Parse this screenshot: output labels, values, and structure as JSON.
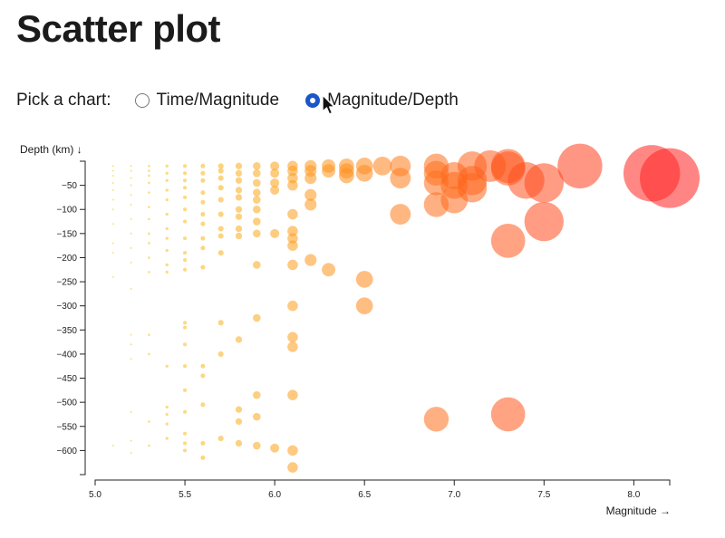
{
  "page": {
    "title": "Scatter plot"
  },
  "picker": {
    "label": "Pick a chart:",
    "options": [
      {
        "label": "Time/Magnitude",
        "checked": false
      },
      {
        "label": "Magnitude/Depth",
        "checked": true
      }
    ]
  },
  "colors": {
    "low": "#f6d416",
    "mid": "#ff8c1a",
    "high": "#ff2020",
    "radio_accent": "#1a55c9"
  },
  "chart_data": {
    "type": "scatter",
    "title": "",
    "xlabel": "Magnitude →",
    "ylabel": "Depth (km) ↓",
    "xlim": [
      5.0,
      8.2
    ],
    "ylim": [
      -650,
      0
    ],
    "xticks": [
      "5.0",
      "5.5",
      "6.0",
      "6.5",
      "7.0",
      "7.5",
      "8.0"
    ],
    "yticks": [
      "−50",
      "−100",
      "−150",
      "−200",
      "−250",
      "−300",
      "−350",
      "−400",
      "−450",
      "−500",
      "−550",
      "−600"
    ],
    "points": [
      [
        5.1,
        -10
      ],
      [
        5.1,
        -20
      ],
      [
        5.1,
        -30
      ],
      [
        5.1,
        -45
      ],
      [
        5.1,
        -60
      ],
      [
        5.1,
        -80
      ],
      [
        5.1,
        -100
      ],
      [
        5.1,
        -130
      ],
      [
        5.1,
        -170
      ],
      [
        5.1,
        -190
      ],
      [
        5.1,
        -240
      ],
      [
        5.1,
        -590
      ],
      [
        5.2,
        -10
      ],
      [
        5.2,
        -20
      ],
      [
        5.2,
        -35
      ],
      [
        5.2,
        -50
      ],
      [
        5.2,
        -70
      ],
      [
        5.2,
        -90
      ],
      [
        5.2,
        -120
      ],
      [
        5.2,
        -150
      ],
      [
        5.2,
        -180
      ],
      [
        5.2,
        -210
      ],
      [
        5.2,
        -265
      ],
      [
        5.2,
        -360
      ],
      [
        5.2,
        -380
      ],
      [
        5.2,
        -410
      ],
      [
        5.2,
        -520
      ],
      [
        5.2,
        -580
      ],
      [
        5.2,
        -605
      ],
      [
        5.3,
        -10
      ],
      [
        5.3,
        -20
      ],
      [
        5.3,
        -30
      ],
      [
        5.3,
        -45
      ],
      [
        5.3,
        -65
      ],
      [
        5.3,
        -95
      ],
      [
        5.3,
        -120
      ],
      [
        5.3,
        -150
      ],
      [
        5.3,
        -170
      ],
      [
        5.3,
        -200
      ],
      [
        5.3,
        -230
      ],
      [
        5.3,
        -360
      ],
      [
        5.3,
        -400
      ],
      [
        5.3,
        -540
      ],
      [
        5.3,
        -590
      ],
      [
        5.4,
        -10
      ],
      [
        5.4,
        -25
      ],
      [
        5.4,
        -40
      ],
      [
        5.4,
        -60
      ],
      [
        5.4,
        -80
      ],
      [
        5.4,
        -110
      ],
      [
        5.4,
        -140
      ],
      [
        5.4,
        -160
      ],
      [
        5.4,
        -185
      ],
      [
        5.4,
        -215
      ],
      [
        5.4,
        -230
      ],
      [
        5.4,
        -425
      ],
      [
        5.4,
        -510
      ],
      [
        5.4,
        -525
      ],
      [
        5.4,
        -545
      ],
      [
        5.4,
        -575
      ],
      [
        5.5,
        -10
      ],
      [
        5.5,
        -25
      ],
      [
        5.5,
        -40
      ],
      [
        5.5,
        -55
      ],
      [
        5.5,
        -75
      ],
      [
        5.5,
        -100
      ],
      [
        5.5,
        -125
      ],
      [
        5.5,
        -160
      ],
      [
        5.5,
        -190
      ],
      [
        5.5,
        -205
      ],
      [
        5.5,
        -225
      ],
      [
        5.5,
        -335
      ],
      [
        5.5,
        -345
      ],
      [
        5.5,
        -380
      ],
      [
        5.5,
        -425
      ],
      [
        5.5,
        -475
      ],
      [
        5.5,
        -520
      ],
      [
        5.5,
        -565
      ],
      [
        5.5,
        -585
      ],
      [
        5.5,
        -600
      ],
      [
        5.6,
        -10
      ],
      [
        5.6,
        -25
      ],
      [
        5.6,
        -40
      ],
      [
        5.6,
        -65
      ],
      [
        5.6,
        -85
      ],
      [
        5.6,
        -110
      ],
      [
        5.6,
        -130
      ],
      [
        5.6,
        -160
      ],
      [
        5.6,
        -180
      ],
      [
        5.6,
        -220
      ],
      [
        5.6,
        -425
      ],
      [
        5.6,
        -445
      ],
      [
        5.6,
        -505
      ],
      [
        5.6,
        -585
      ],
      [
        5.6,
        -615
      ],
      [
        5.7,
        -10
      ],
      [
        5.7,
        -20
      ],
      [
        5.7,
        -35
      ],
      [
        5.7,
        -55
      ],
      [
        5.7,
        -80
      ],
      [
        5.7,
        -110
      ],
      [
        5.7,
        -140
      ],
      [
        5.7,
        -155
      ],
      [
        5.7,
        -190
      ],
      [
        5.7,
        -335
      ],
      [
        5.7,
        -400
      ],
      [
        5.7,
        -575
      ],
      [
        5.8,
        -10
      ],
      [
        5.8,
        -25
      ],
      [
        5.8,
        -40
      ],
      [
        5.8,
        -60
      ],
      [
        5.8,
        -75
      ],
      [
        5.8,
        -100
      ],
      [
        5.8,
        -115
      ],
      [
        5.8,
        -140
      ],
      [
        5.8,
        -155
      ],
      [
        5.8,
        -370
      ],
      [
        5.8,
        -515
      ],
      [
        5.8,
        -540
      ],
      [
        5.8,
        -585
      ],
      [
        5.9,
        -10
      ],
      [
        5.9,
        -25
      ],
      [
        5.9,
        -45
      ],
      [
        5.9,
        -65
      ],
      [
        5.9,
        -80
      ],
      [
        5.9,
        -100
      ],
      [
        5.9,
        -125
      ],
      [
        5.9,
        -150
      ],
      [
        5.9,
        -215
      ],
      [
        5.9,
        -325
      ],
      [
        5.9,
        -485
      ],
      [
        5.9,
        -530
      ],
      [
        5.9,
        -590
      ],
      [
        6.0,
        -10
      ],
      [
        6.0,
        -25
      ],
      [
        6.0,
        -45
      ],
      [
        6.0,
        -60
      ],
      [
        6.0,
        -150
      ],
      [
        6.0,
        -595
      ],
      [
        6.1,
        -10
      ],
      [
        6.1,
        -20
      ],
      [
        6.1,
        -35
      ],
      [
        6.1,
        -50
      ],
      [
        6.1,
        -110
      ],
      [
        6.1,
        -145
      ],
      [
        6.1,
        -160
      ],
      [
        6.1,
        -175
      ],
      [
        6.1,
        -215
      ],
      [
        6.1,
        -300
      ],
      [
        6.1,
        -365
      ],
      [
        6.1,
        -385
      ],
      [
        6.1,
        -485
      ],
      [
        6.1,
        -600
      ],
      [
        6.1,
        -635
      ],
      [
        6.2,
        -10
      ],
      [
        6.2,
        -20
      ],
      [
        6.2,
        -35
      ],
      [
        6.2,
        -70
      ],
      [
        6.2,
        -90
      ],
      [
        6.2,
        -205
      ],
      [
        6.3,
        -10
      ],
      [
        6.3,
        -20
      ],
      [
        6.3,
        -225
      ],
      [
        6.4,
        -10
      ],
      [
        6.4,
        -20
      ],
      [
        6.4,
        -30
      ],
      [
        6.5,
        -10
      ],
      [
        6.5,
        -25
      ],
      [
        6.5,
        -245
      ],
      [
        6.5,
        -300
      ],
      [
        6.6,
        -10
      ],
      [
        6.7,
        -10
      ],
      [
        6.7,
        -35
      ],
      [
        6.7,
        -110
      ],
      [
        6.9,
        -10
      ],
      [
        6.9,
        -25
      ],
      [
        6.9,
        -45
      ],
      [
        6.9,
        -90
      ],
      [
        6.9,
        -535
      ],
      [
        7.0,
        -30
      ],
      [
        7.0,
        -50
      ],
      [
        7.0,
        -80
      ],
      [
        7.1,
        -10
      ],
      [
        7.1,
        -40
      ],
      [
        7.1,
        -55
      ],
      [
        7.2,
        -10
      ],
      [
        7.3,
        -10
      ],
      [
        7.3,
        -15
      ],
      [
        7.3,
        -165
      ],
      [
        7.3,
        -525
      ],
      [
        7.4,
        -40
      ],
      [
        7.5,
        -45
      ],
      [
        7.5,
        -125
      ],
      [
        7.7,
        -10
      ],
      [
        8.1,
        -25
      ],
      [
        8.2,
        -35
      ]
    ]
  }
}
